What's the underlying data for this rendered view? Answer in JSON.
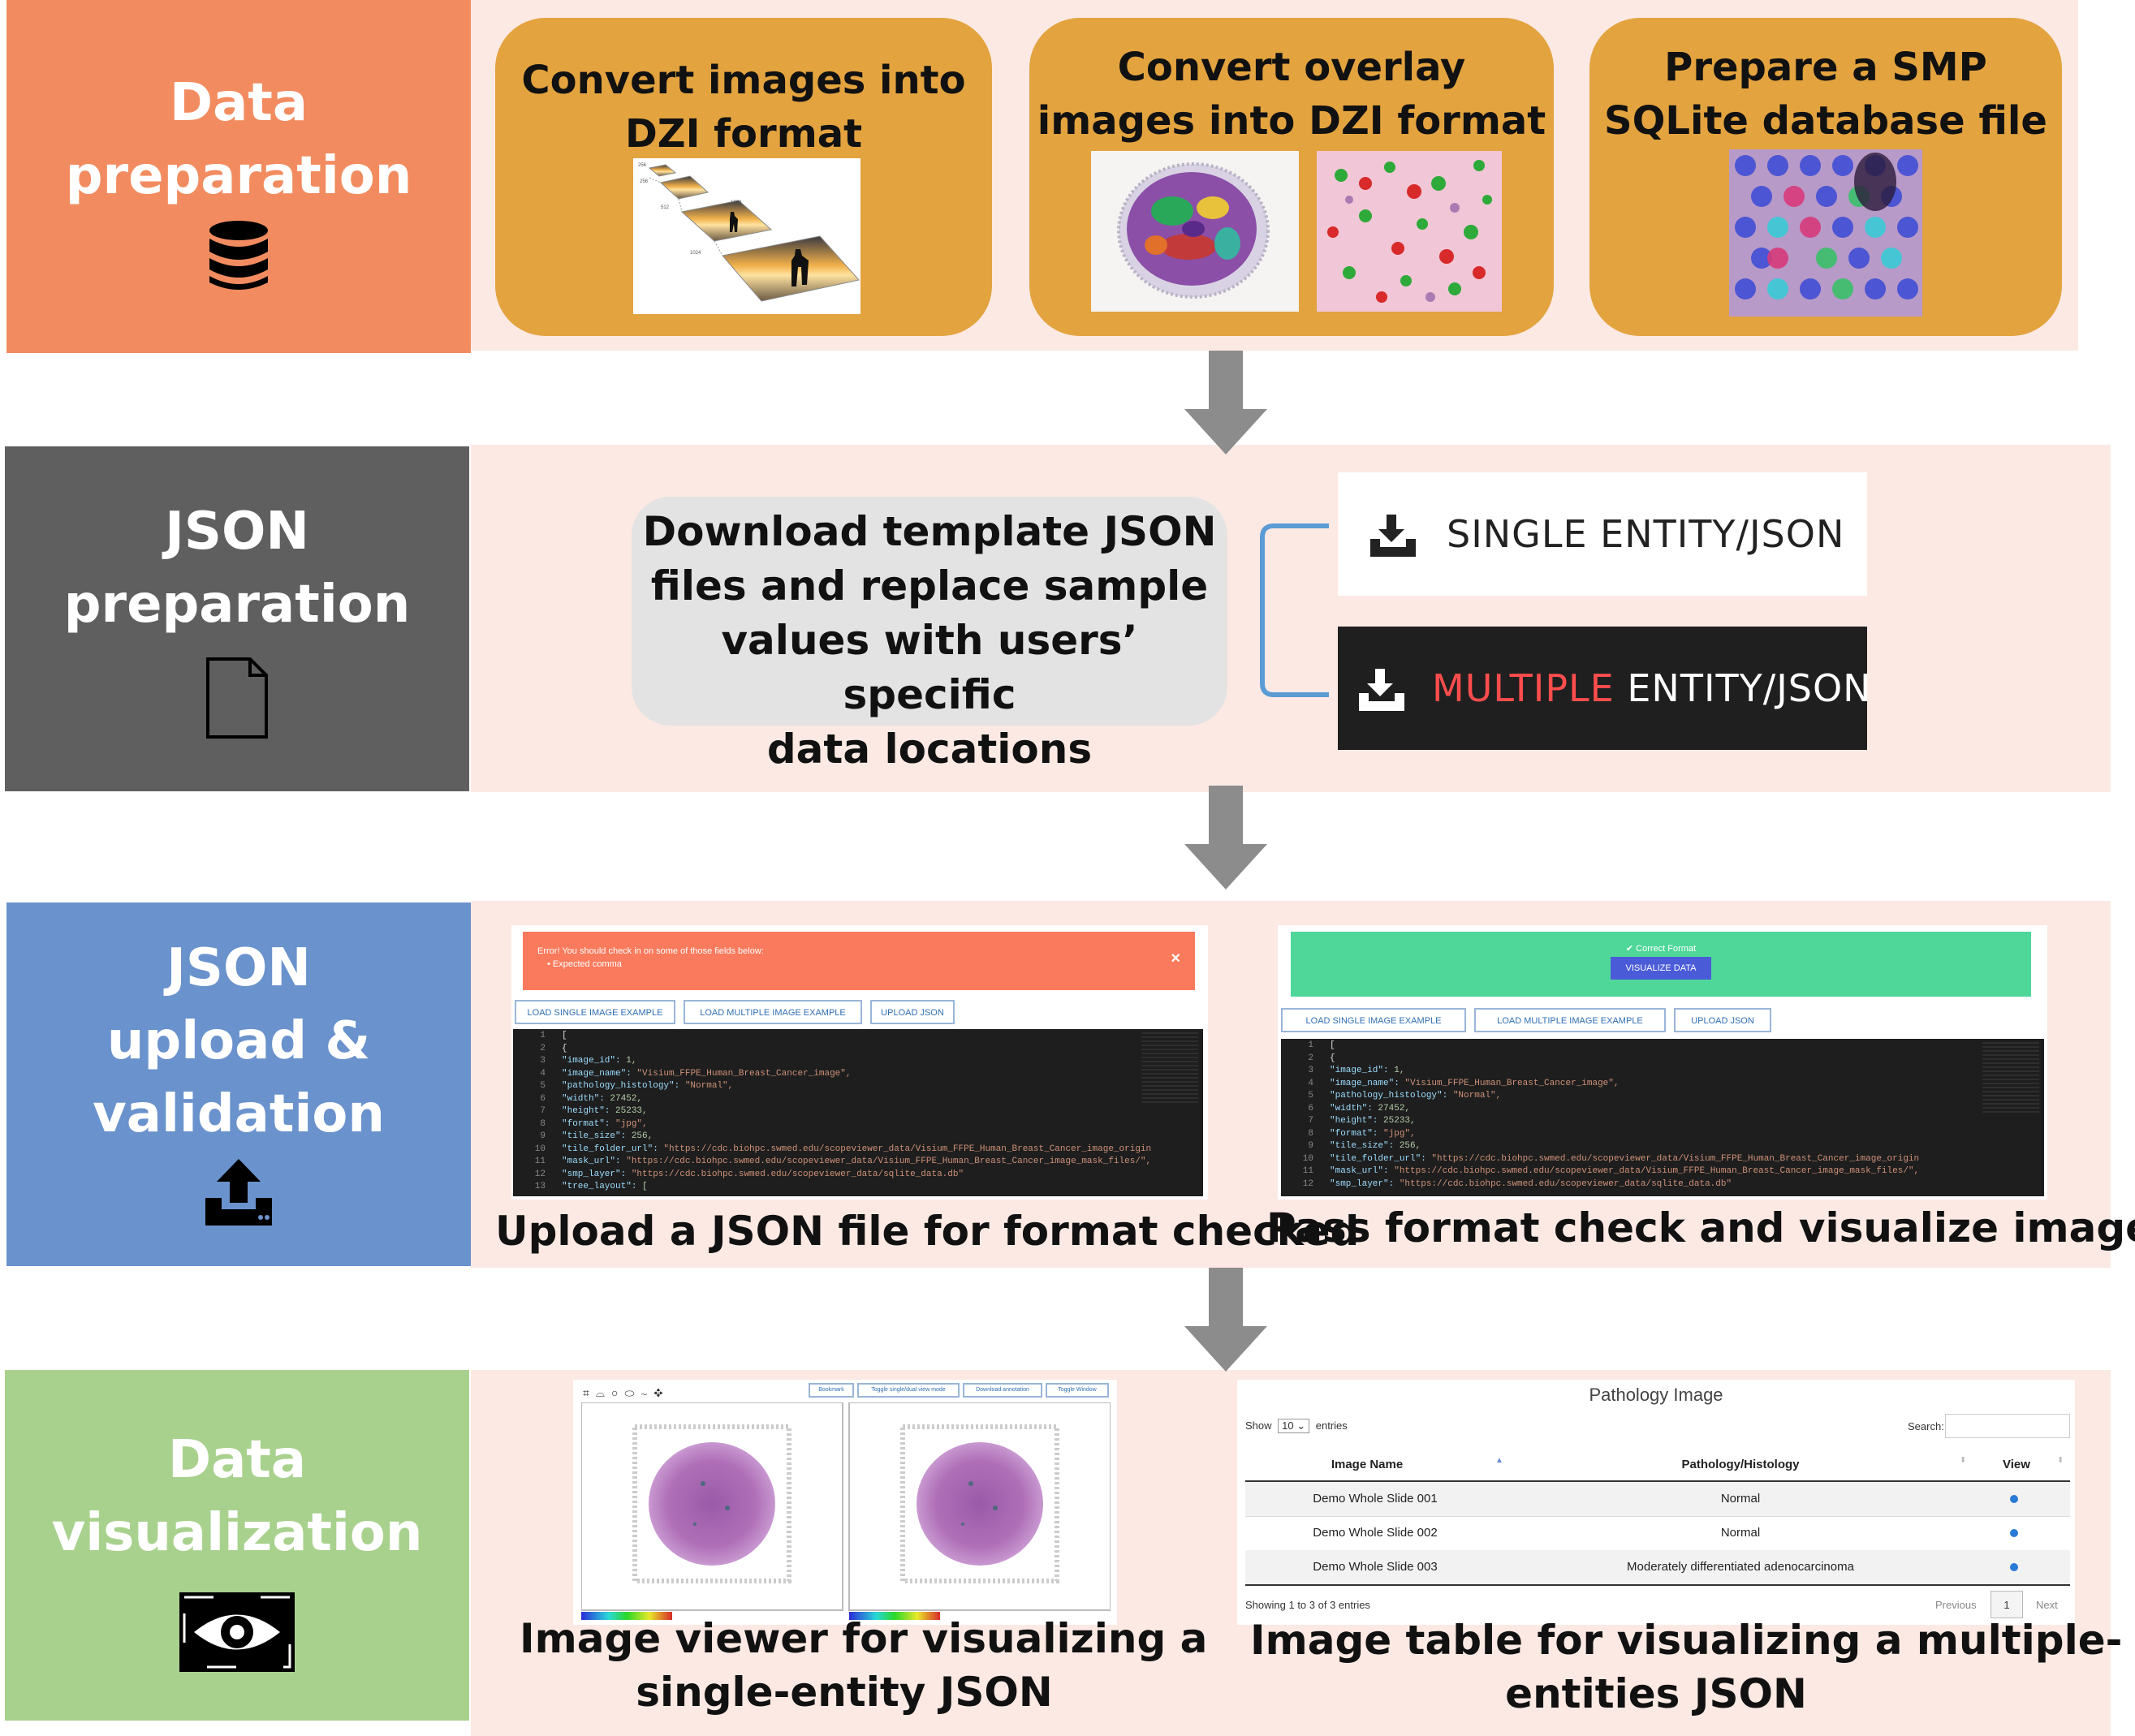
{
  "stages": {
    "data_prep": {
      "line1": "Data",
      "line2": "preparation",
      "icon": "database-icon",
      "color": "#f28c60"
    },
    "json_prep": {
      "line1": "JSON",
      "line2": "preparation",
      "icon": "file-icon",
      "color": "#5f5f5f"
    },
    "upload": {
      "line1": "JSON",
      "line2": "upload &",
      "line3": "validation",
      "icon": "upload-icon",
      "color": "#6a92cc"
    },
    "visualization": {
      "line1": "Data",
      "line2": "visualization",
      "icon": "eye-icon",
      "color": "#a9d18e"
    }
  },
  "data_prep_boxes": [
    {
      "line1": "Convert images into",
      "line2": "DZI format"
    },
    {
      "line1": "Convert overlay",
      "line2": "images into DZI format"
    },
    {
      "line1": "Prepare a SMP",
      "line2": "SQLite database file"
    }
  ],
  "json_prep": {
    "template_box": [
      "Download template JSON",
      "files and replace sample",
      "values with users’ specific",
      "data locations"
    ],
    "single_button": "SINGLE ENTITY/JSON",
    "multiple_button_part1": "MULTIPLE",
    "multiple_button_part2": " ENTITY/JSON",
    "accent_red": "#ff4d4d"
  },
  "upload": {
    "error_title": "Error! You should check in on some of those fields below:",
    "error_item": "Expected comma",
    "success_title": "Correct Format",
    "visualize_button": "VISUALIZE DATA",
    "buttons": [
      "LOAD SINGLE IMAGE EXAMPLE",
      "LOAD MULTIPLE IMAGE EXAMPLE",
      "UPLOAD JSON"
    ],
    "close": "×",
    "code_lines": [
      {
        "n": "1",
        "text": "["
      },
      {
        "n": "2",
        "text": "  {"
      },
      {
        "n": "3",
        "key": "\"image_id\"",
        "val": " 1,"
      },
      {
        "n": "4",
        "key": "\"image_name\"",
        "str": " \"Visium_FFPE_Human_Breast_Cancer_image\","
      },
      {
        "n": "5",
        "key": "\"pathology_histology\"",
        "str": " \"Normal\","
      },
      {
        "n": "6",
        "key": "\"width\"",
        "val": " 27452,"
      },
      {
        "n": "7",
        "key": "\"height\"",
        "val": " 25233,"
      },
      {
        "n": "8",
        "key": "\"format\"",
        "str": " \"jpg\","
      },
      {
        "n": "9",
        "key": "\"tile_size\"",
        "val": " 256,"
      },
      {
        "n": "10",
        "key": "\"tile_folder_url\"",
        "str": " \"https://cdc.biohpc.swmed.edu/scopeviewer_data/Visium_FFPE_Human_Breast_Cancer_image_origin"
      },
      {
        "n": "11",
        "key": "\"mask_url\"",
        "str": " \"https://cdc.biohpc.swmed.edu/scopeviewer_data/Visium_FFPE_Human_Breast_Cancer_image_mask_files/\","
      },
      {
        "n": "12",
        "key": "\"smp_layer\"",
        "str": " \"https://cdc.biohpc.swmed.edu/scopeviewer_data/sqlite_data.db\""
      },
      {
        "n": "13",
        "key": "\"tree_layout\"",
        "val": " ["
      }
    ],
    "caption_left": "Upload a JSON file for format checked",
    "caption_right": "Pass format check and visualize images"
  },
  "visualization": {
    "viewer_buttons": [
      "Bookmark",
      "Toggle single/dual view mode",
      "Download annotation",
      "Toggle Window"
    ],
    "caption_left": [
      "Image viewer for visualizing a",
      "single-entity JSON"
    ],
    "caption_right": [
      "Image table for visualizing a multiple-",
      "entities JSON"
    ],
    "table": {
      "title": "Pathology Image",
      "show": "Show",
      "show_value": "10",
      "entries": "entries",
      "search": "Search:",
      "headers": [
        "Image Name",
        "Pathology/Histology",
        "View"
      ],
      "rows": [
        [
          "Demo Whole Slide 001",
          "Normal"
        ],
        [
          "Demo Whole Slide 002",
          "Normal"
        ],
        [
          "Demo Whole Slide 003",
          "Moderately differentiated adenocarcinoma"
        ]
      ],
      "footer": "Showing 1 to 3 of 3 entries",
      "previous": "Previous",
      "page": "1",
      "next": "Next"
    }
  }
}
